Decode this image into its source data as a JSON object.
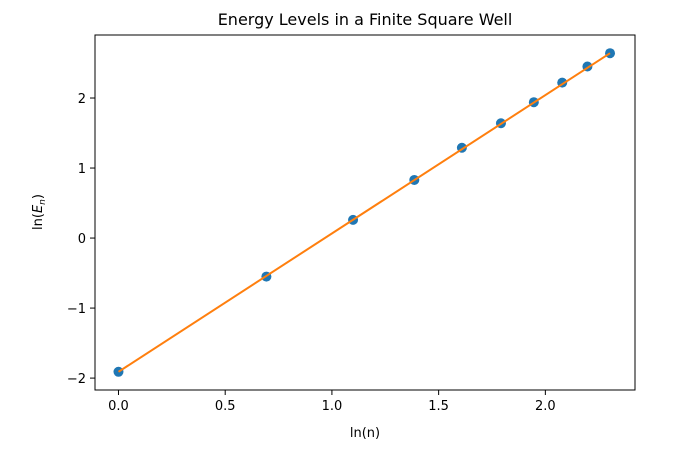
{
  "chart_data": {
    "type": "scatter",
    "title": "Energy Levels in a Finite Square Well",
    "xlabel": "ln(n)",
    "ylabel_prefix": "ln(",
    "ylabel_var": "E",
    "ylabel_sub": "n",
    "ylabel_suffix": ")",
    "xlim": [
      -0.11,
      2.42
    ],
    "ylim": [
      -2.17,
      2.9
    ],
    "xticks": [
      0.0,
      0.5,
      1.0,
      1.5,
      2.0
    ],
    "xtick_labels": [
      "0.0",
      "0.5",
      "1.0",
      "1.5",
      "2.0"
    ],
    "yticks": [
      -2,
      -1,
      0,
      1,
      2
    ],
    "ytick_labels": [
      "−2",
      "−1",
      "0",
      "1",
      "2"
    ],
    "grid": false,
    "legend": "none",
    "series": [
      {
        "kind": "scatter",
        "color": "#1f77b4",
        "x": [
          0.0,
          0.693,
          1.099,
          1.386,
          1.609,
          1.792,
          1.946,
          2.079,
          2.197,
          2.303
        ],
        "y": [
          -1.91,
          -0.55,
          0.26,
          0.83,
          1.29,
          1.64,
          1.94,
          2.22,
          2.45,
          2.64
        ]
      },
      {
        "kind": "line",
        "color": "#ff7f0e",
        "x": [
          0.0,
          2.303
        ],
        "y": [
          -1.91,
          2.64
        ]
      }
    ]
  }
}
